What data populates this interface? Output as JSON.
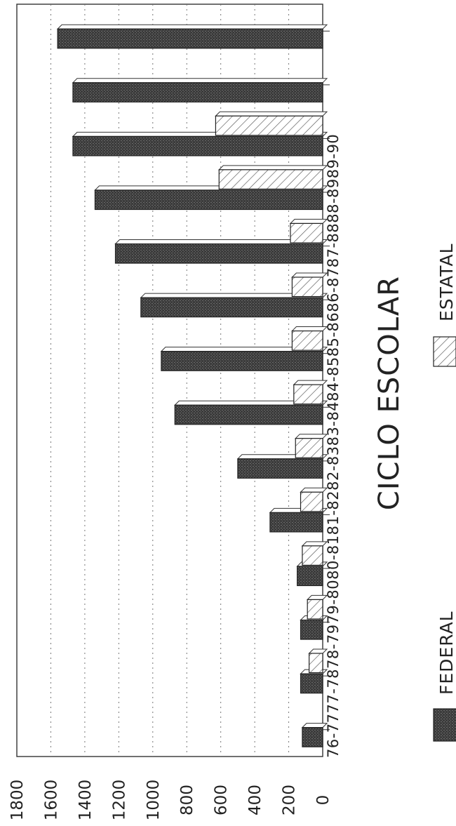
{
  "chart_data": {
    "type": "bar",
    "orientation": "rotated-90-clockwise",
    "xlabel": "CICLO ESCOLAR",
    "ylabel": "",
    "ylim": [
      0,
      1800
    ],
    "y_ticks": [
      "0",
      "200",
      "400",
      "600",
      "800",
      "1000",
      "1200",
      "1400",
      "1600",
      "1800"
    ],
    "categories": [
      "76-77",
      "77-78",
      "78-79",
      "79-80",
      "80-81",
      "81-82",
      "82-83",
      "83-84",
      "84-85",
      "85-86",
      "86-87",
      "87-88",
      "88-89",
      "89-90"
    ],
    "category_label_text": "76-7777-7878-7979-8080-8181-8282-8383-8484-8585-8686-8787-8888-8989-90",
    "series": [
      {
        "name": "FEDERAL",
        "values": [
          120,
          130,
          130,
          150,
          310,
          500,
          870,
          950,
          1070,
          1220,
          1340,
          1470,
          1470,
          1560
        ],
        "color": "#3a3a3a",
        "fill": "solid-dark"
      },
      {
        "name": "ESTATAL",
        "values": [
          0,
          80,
          90,
          120,
          130,
          160,
          170,
          180,
          180,
          190,
          610,
          630,
          0,
          0
        ],
        "color": "#ffffff",
        "fill": "hatched"
      }
    ],
    "grid": true,
    "grid_style": "dotted",
    "legend": "bottom"
  }
}
